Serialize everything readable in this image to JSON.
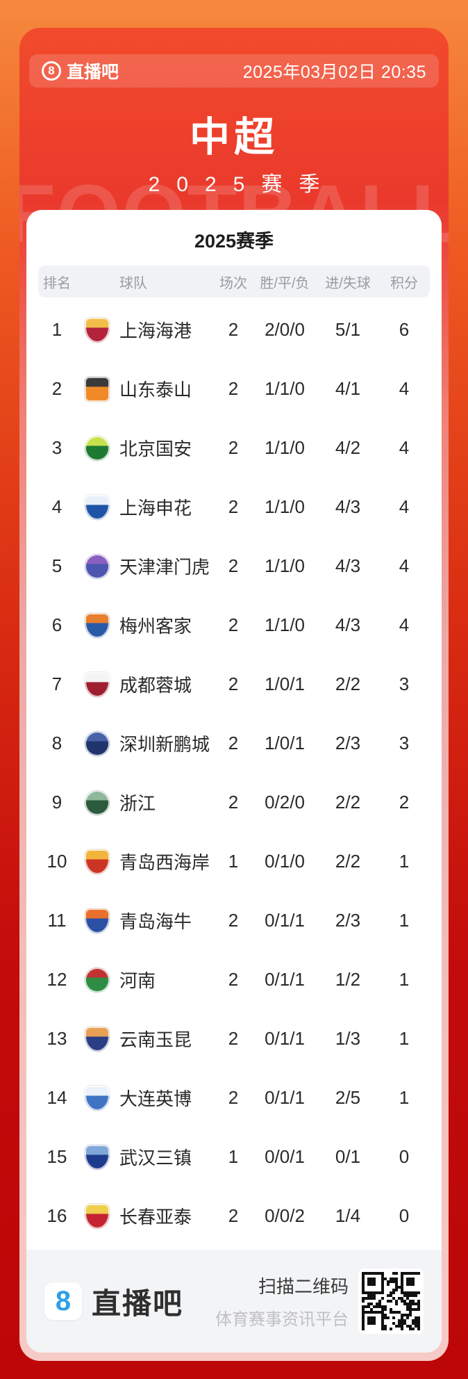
{
  "hero": {
    "badge": "8",
    "brand": "直播吧",
    "datetime": "2025年03月02日 20:35",
    "title": "中超",
    "season": "2025赛季",
    "watermark": "FOOTBALL"
  },
  "table": {
    "title": "2025赛季",
    "columns": [
      "排名",
      "球队",
      "场次",
      "胜/平/负",
      "进/失球",
      "积分"
    ],
    "rows": [
      {
        "rank": "1",
        "team": "上海海港",
        "played": "2",
        "wdl": "2/0/0",
        "goals": "5/1",
        "points": "6",
        "crest": {
          "shape": "shield",
          "primary": "#B3233B",
          "secondary": "#F2BE4A"
        }
      },
      {
        "rank": "2",
        "team": "山东泰山",
        "played": "2",
        "wdl": "1/1/0",
        "goals": "4/1",
        "points": "4",
        "crest": {
          "shape": "badge",
          "primary": "#F08A28",
          "secondary": "#3A3A3A"
        }
      },
      {
        "rank": "3",
        "team": "北京国安",
        "played": "2",
        "wdl": "1/1/0",
        "goals": "4/2",
        "points": "4",
        "crest": {
          "shape": "circle",
          "primary": "#1E7A33",
          "secondary": "#C9E04E"
        }
      },
      {
        "rank": "4",
        "team": "上海申花",
        "played": "2",
        "wdl": "1/1/0",
        "goals": "4/3",
        "points": "4",
        "crest": {
          "shape": "shield",
          "primary": "#1E55A6",
          "secondary": "#E8EFF8"
        }
      },
      {
        "rank": "5",
        "team": "天津津门虎",
        "played": "2",
        "wdl": "1/1/0",
        "goals": "4/3",
        "points": "4",
        "crest": {
          "shape": "circle",
          "primary": "#4C55B0",
          "secondary": "#8A5FC0"
        }
      },
      {
        "rank": "6",
        "team": "梅州客家",
        "played": "2",
        "wdl": "1/1/0",
        "goals": "4/3",
        "points": "4",
        "crest": {
          "shape": "shield",
          "primary": "#2A5AA6",
          "secondary": "#E87F2E"
        }
      },
      {
        "rank": "7",
        "team": "成都蓉城",
        "played": "2",
        "wdl": "1/0/1",
        "goals": "2/2",
        "points": "3",
        "crest": {
          "shape": "shield",
          "primary": "#9E1F30",
          "secondary": "#F4F4F4"
        }
      },
      {
        "rank": "8",
        "team": "深圳新鹏城",
        "played": "2",
        "wdl": "1/0/1",
        "goals": "2/3",
        "points": "3",
        "crest": {
          "shape": "circle",
          "primary": "#20356E",
          "secondary": "#4A62A8"
        }
      },
      {
        "rank": "9",
        "team": "浙江",
        "played": "2",
        "wdl": "0/2/0",
        "goals": "2/2",
        "points": "2",
        "crest": {
          "shape": "circle",
          "primary": "#2C5A3C",
          "secondary": "#8FB89B"
        }
      },
      {
        "rank": "10",
        "team": "青岛西海岸",
        "played": "1",
        "wdl": "0/1/0",
        "goals": "2/2",
        "points": "1",
        "crest": {
          "shape": "shield",
          "primary": "#CC3524",
          "secondary": "#F2B43C"
        }
      },
      {
        "rank": "11",
        "team": "青岛海牛",
        "played": "2",
        "wdl": "0/1/1",
        "goals": "2/3",
        "points": "1",
        "crest": {
          "shape": "shield",
          "primary": "#2B4FA3",
          "secondary": "#E8702A"
        }
      },
      {
        "rank": "12",
        "team": "河南",
        "played": "2",
        "wdl": "0/1/1",
        "goals": "1/2",
        "points": "1",
        "crest": {
          "shape": "circle",
          "primary": "#2E8C44",
          "secondary": "#C23232"
        }
      },
      {
        "rank": "13",
        "team": "云南玉昆",
        "played": "2",
        "wdl": "0/1/1",
        "goals": "1/3",
        "points": "1",
        "crest": {
          "shape": "shield",
          "primary": "#2A3D85",
          "secondary": "#E8A055"
        }
      },
      {
        "rank": "14",
        "team": "大连英博",
        "played": "2",
        "wdl": "0/1/1",
        "goals": "2/5",
        "points": "1",
        "crest": {
          "shape": "shield",
          "primary": "#3F74C4",
          "secondary": "#EAF1FA"
        }
      },
      {
        "rank": "15",
        "team": "武汉三镇",
        "played": "1",
        "wdl": "0/0/1",
        "goals": "0/1",
        "points": "0",
        "crest": {
          "shape": "shield",
          "primary": "#1F3B8E",
          "secondary": "#7FA8D8"
        }
      },
      {
        "rank": "16",
        "team": "长春亚泰",
        "played": "2",
        "wdl": "0/0/2",
        "goals": "1/4",
        "points": "0",
        "crest": {
          "shape": "shield",
          "primary": "#C42431",
          "secondary": "#F0CE4E"
        }
      }
    ]
  },
  "footer": {
    "badge": "8",
    "brand": "直播吧",
    "qr_title": "扫描二维码",
    "qr_subtitle": "体育赛事资讯平台"
  },
  "colors": {
    "accent_red": "#EE3A28",
    "outer_orange": "#F6893E",
    "outer_dark_red": "#BC0607",
    "badge_blue": "#2E9FE6",
    "table_header_bg": "#F1F2F5",
    "footer_bg": "#F3F4F6"
  }
}
